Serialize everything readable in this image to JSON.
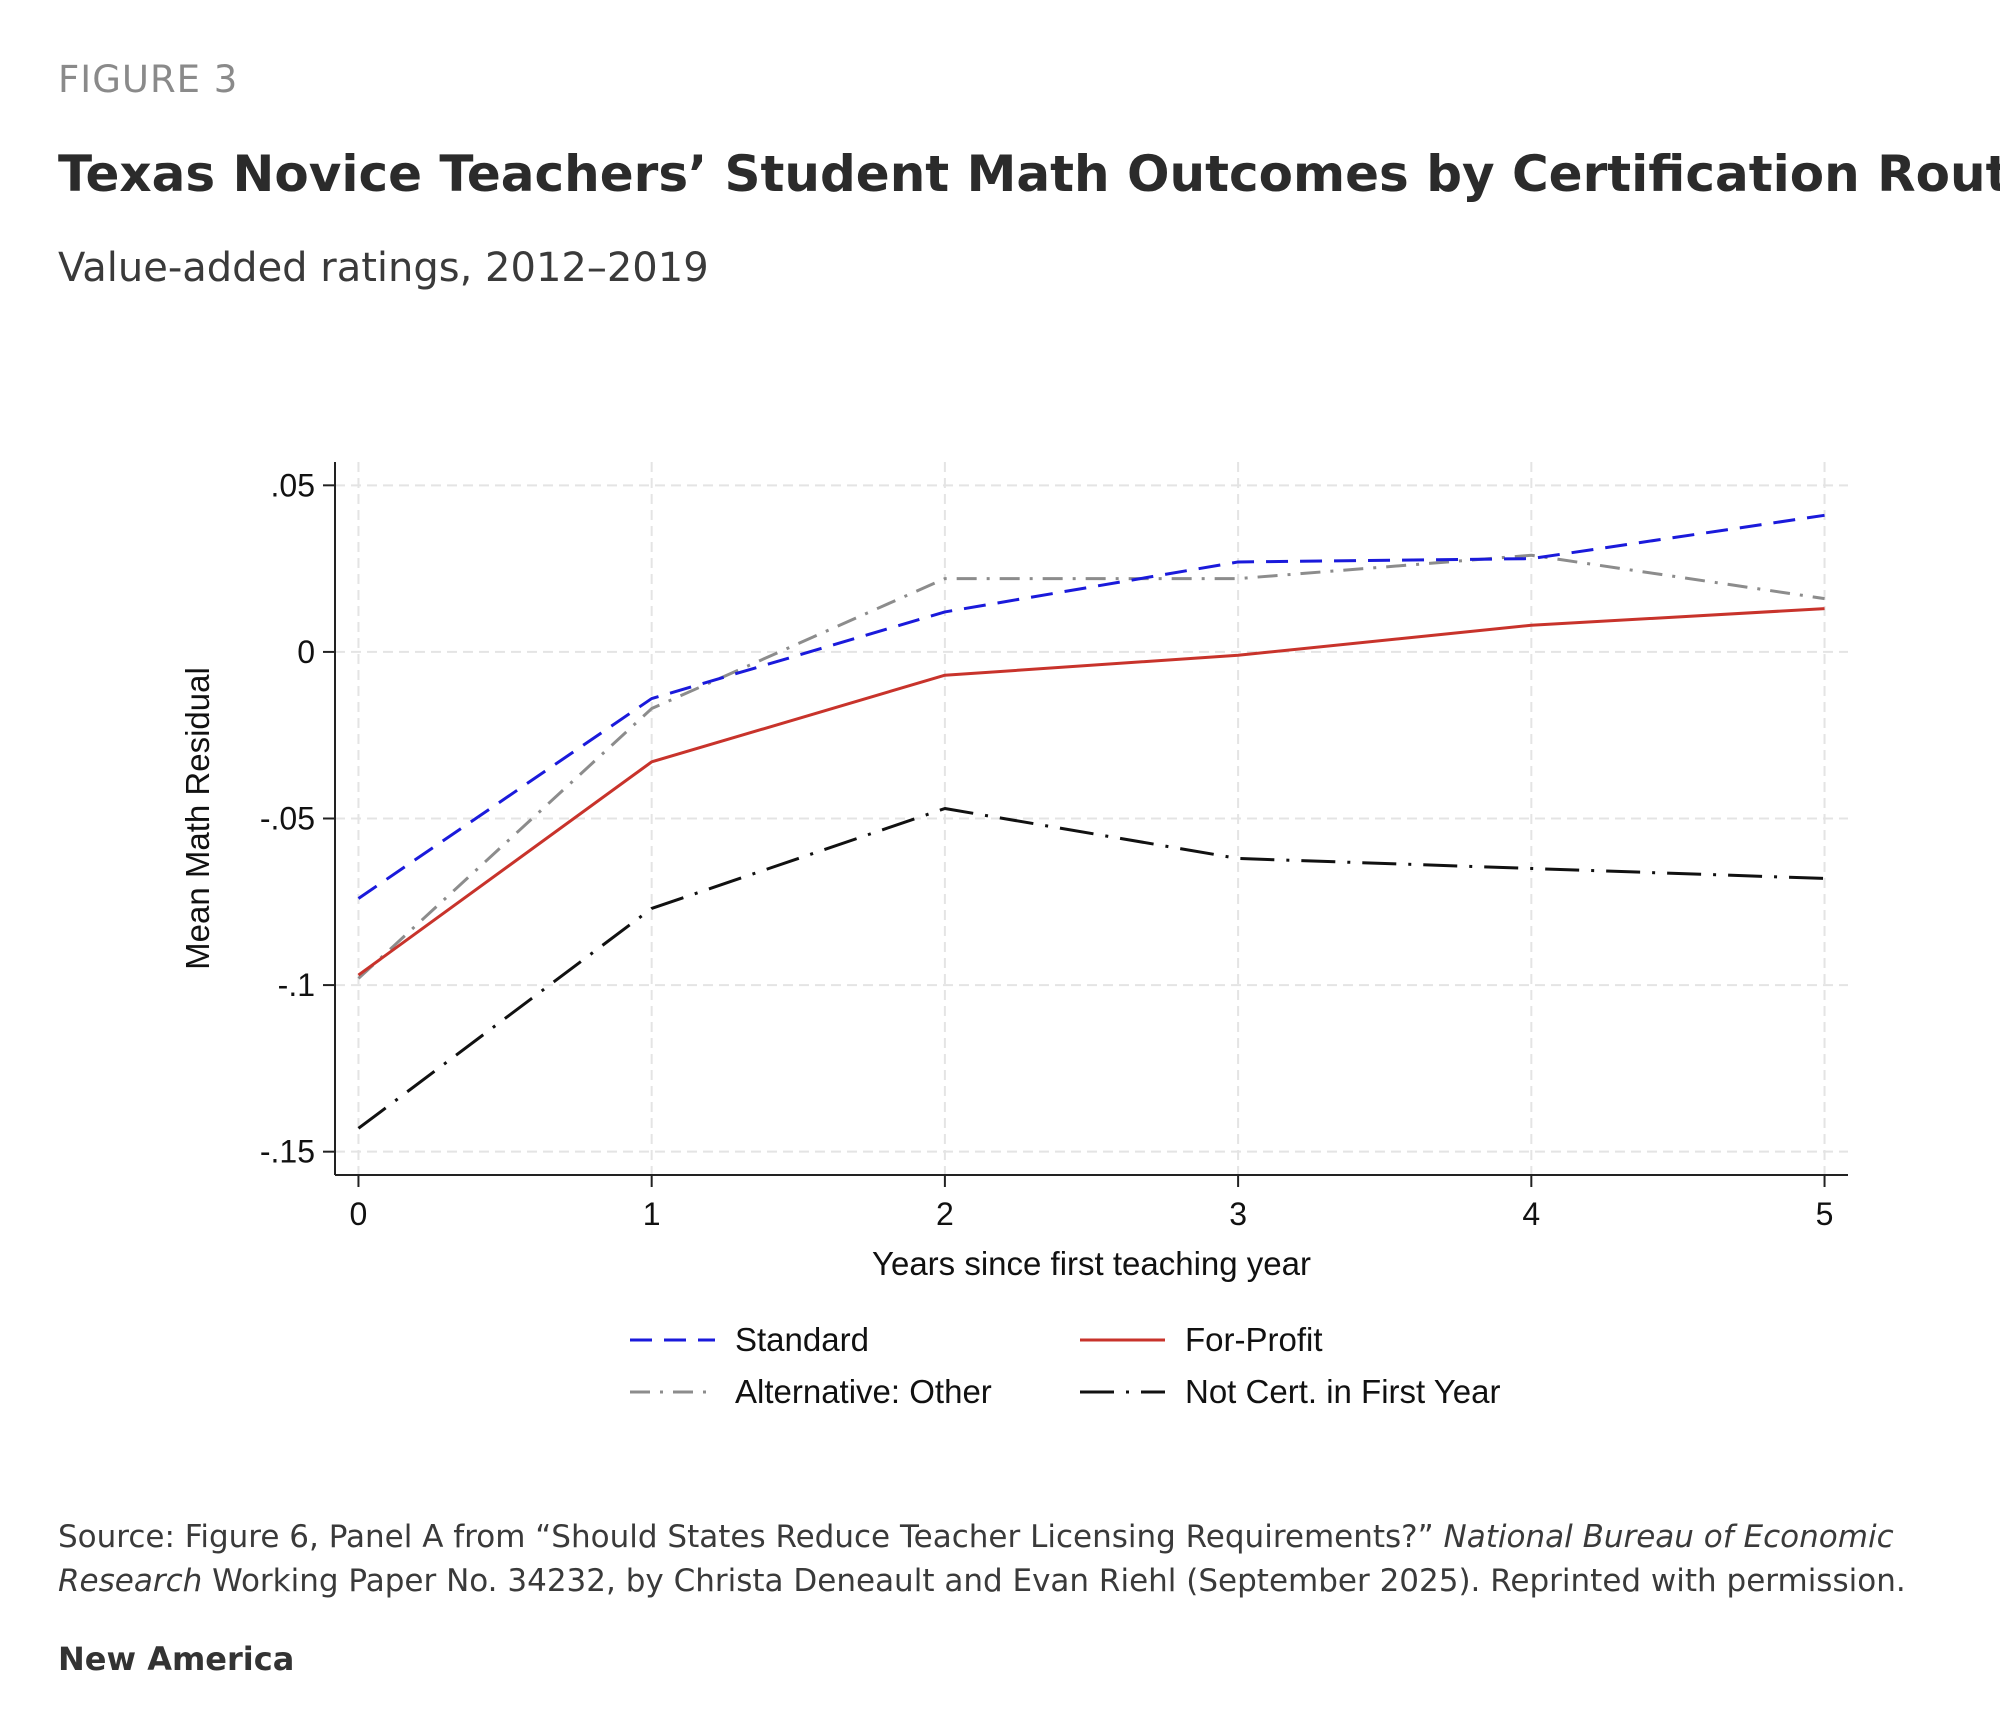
{
  "header": {
    "eyebrow": "FIGURE 3",
    "title": "Texas Novice Teachers’ Student Math Outcomes by Certification Route",
    "subtitle": "Value-added ratings, 2012–2019"
  },
  "footer": {
    "source_prefix": "Source: Figure 6, Panel A from “Should States Reduce Teacher Licensing Requirements?” ",
    "source_italic": "National Bureau of Economic Research",
    "source_suffix": " Working Paper No. 34232, by Christa Deneault and Evan Riehl (September 2025). Reprinted with permission.",
    "publisher": "New America"
  },
  "chart_data": {
    "type": "line",
    "xlabel": "Years since first teaching year",
    "ylabel": "Mean Math Residual",
    "x": [
      0,
      1,
      2,
      3,
      4,
      5
    ],
    "xlim": [
      -0.08,
      5.08
    ],
    "ylim": [
      -0.157,
      0.057
    ],
    "yticks": [
      0.05,
      0,
      -0.05,
      -0.1,
      -0.15
    ],
    "ytick_labels": [
      ".05",
      "0",
      "-.05",
      "-.1",
      "-.15"
    ],
    "xtick_labels": [
      "0",
      "1",
      "2",
      "3",
      "4",
      "5"
    ],
    "grid": true,
    "legend_position": "bottom",
    "series": [
      {
        "name": "Standard",
        "color": "#1a1adb",
        "dash": "dashed",
        "values": [
          -0.074,
          -0.014,
          0.012,
          0.027,
          0.028,
          0.041
        ]
      },
      {
        "name": "For-Profit",
        "color": "#c8332b",
        "dash": "solid",
        "values": [
          -0.097,
          -0.033,
          -0.007,
          -0.001,
          0.008,
          0.013
        ]
      },
      {
        "name": "Alternative: Other",
        "color": "#8c8c8c",
        "dash": "dashdot",
        "values": [
          -0.098,
          -0.017,
          0.022,
          0.022,
          0.029,
          0.016
        ]
      },
      {
        "name": "Not Cert. in First Year",
        "color": "#111111",
        "dash": "longdashdot",
        "values": [
          -0.143,
          -0.077,
          -0.047,
          -0.062,
          -0.065,
          -0.068
        ]
      }
    ]
  }
}
